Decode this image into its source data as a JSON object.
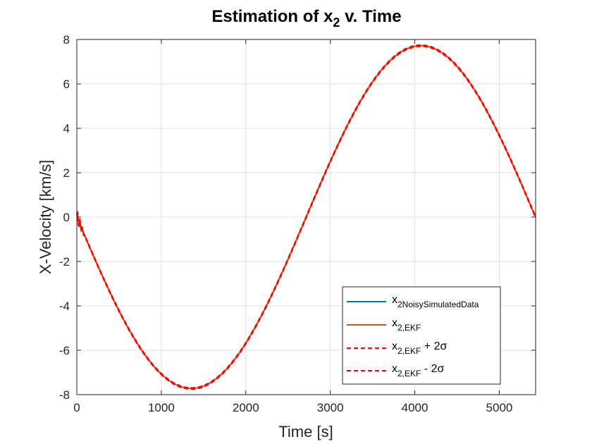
{
  "chart_data": {
    "type": "line",
    "title": "Estimation of x",
    "title_sub": "2",
    "title_rest": " v. Time",
    "xlabel": "Time [s]",
    "ylabel": "X-Velocity [km/s]",
    "xlim": [
      0,
      5430
    ],
    "ylim": [
      -8,
      8
    ],
    "xticks": [
      0,
      1000,
      2000,
      3000,
      4000,
      5000
    ],
    "xtick_labels": [
      "0",
      "1000",
      "2000",
      "3000",
      "4000",
      "5000"
    ],
    "yticks": [
      -8,
      -6,
      -4,
      -2,
      0,
      2,
      4,
      6,
      8
    ],
    "ytick_labels": [
      "-8",
      "-6",
      "-4",
      "-2",
      "0",
      "2",
      "4",
      "6",
      "8"
    ],
    "grid": true,
    "legend_position": "bottom-right",
    "curve_model": {
      "amplitude": 7.72,
      "period": 5430,
      "min_time": 1357
    },
    "series": [
      {
        "name": "x",
        "sub": "2NoisySimulatedData",
        "suffix": "",
        "color": "#0072BD",
        "style": "solid"
      },
      {
        "name": "x",
        "sub": "2,EKF",
        "suffix": "",
        "color": "#D95319",
        "style": "solid"
      },
      {
        "name": "x",
        "sub": "2,EKF",
        "suffix": " + 2σ",
        "color": "#FF0000",
        "style": "dashed"
      },
      {
        "name": "x",
        "sub": "2,EKF",
        "suffix": " - 2σ",
        "color": "#FF0000",
        "style": "dashed"
      }
    ],
    "key_points": [
      {
        "x": 0,
        "y": 0.1
      },
      {
        "x": 1357,
        "y": -7.72
      },
      {
        "x": 2715,
        "y": 0
      },
      {
        "x": 4072,
        "y": 7.72
      },
      {
        "x": 5430,
        "y": 0.25
      }
    ]
  }
}
